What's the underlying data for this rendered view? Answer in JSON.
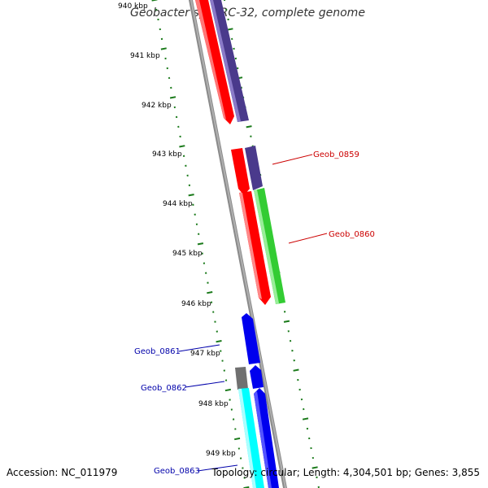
{
  "title": "Geobacter sp. FRC-32, complete genome",
  "footer": {
    "accession": "Accession: NC_011979",
    "summary": "Topology: circular; Length: 4,304,501 bp; Genes: 3,855"
  },
  "colors": {
    "backbone": "#8a8a8a",
    "tick": "#1a7a1a",
    "red": "#ff0000",
    "purple": "#4a3a8c",
    "green": "#33cc33",
    "blue": "#0000ee",
    "cyan": "#00ffff",
    "grey": "#707070",
    "label_red": "#cc0000",
    "label_blue": "#0000aa"
  },
  "kbp_labels": [
    "940 kbp",
    "941 kbp",
    "942 kbp",
    "943 kbp",
    "944 kbp",
    "945 kbp",
    "946 kbp",
    "947 kbp",
    "948 kbp",
    "949 kbp"
  ],
  "gene_labels": [
    {
      "text": "Geob_0859",
      "color": "label_red"
    },
    {
      "text": "Geob_0860",
      "color": "label_red"
    },
    {
      "text": "Geob_0861",
      "color": "label_blue"
    },
    {
      "text": "Geob_0862",
      "color": "label_blue"
    },
    {
      "text": "Geob_0863",
      "color": "label_blue"
    }
  ]
}
